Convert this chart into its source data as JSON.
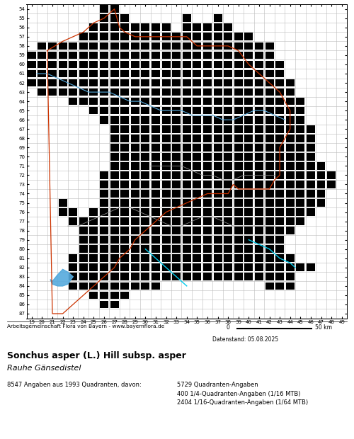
{
  "title_bold": "Sonchus asper (L.) Hill subsp. asper",
  "title_italic": "Rauhe Gänsedistel",
  "stats_line1": "8547 Angaben aus 1993 Quadranten, davon:",
  "stats_col2_line1": "5729 Quadranten-Angaben",
  "stats_col2_line2": "400 1/4-Quadranten-Angaben (1/16 MTB)",
  "stats_col2_line3": "2404 1/16-Quadranten-Angaben (1/64 MTB)",
  "footer_left": "Arbeitsgemeinschaft Flora von Bayern - www.bayernflora.de",
  "date_line": "Datenstand: 05.08.2025",
  "x_min": 19,
  "x_max": 49,
  "y_min": 54,
  "y_max": 87,
  "grid_color": "#bbbbbb",
  "orange_color": "#cc3300",
  "blue_color": "#55aadd",
  "gray_color": "#888888",
  "cyan_color": "#00ccee",
  "black": "#000000",
  "white": "#ffffff",
  "sq_size": 0.82,
  "rows_data": {
    "54": [
      26,
      27
    ],
    "55": [
      26,
      27,
      28,
      34,
      37
    ],
    "56": [
      25,
      26,
      27,
      28,
      29,
      30,
      31,
      32,
      34,
      35,
      36,
      37,
      38
    ],
    "57": [
      24,
      25,
      26,
      27,
      28,
      29,
      30,
      31,
      32,
      33,
      34,
      35,
      36,
      37,
      38,
      39,
      40
    ],
    "58": [
      20,
      21,
      22,
      23,
      24,
      25,
      26,
      27,
      28,
      29,
      30,
      31,
      32,
      33,
      34,
      35,
      36,
      37,
      38,
      39,
      40,
      41,
      42
    ],
    "59": [
      19,
      20,
      21,
      22,
      23,
      24,
      25,
      26,
      27,
      28,
      29,
      30,
      31,
      32,
      33,
      34,
      35,
      36,
      37,
      38,
      39,
      40,
      41,
      42
    ],
    "60": [
      19,
      20,
      21,
      22,
      23,
      24,
      25,
      26,
      27,
      28,
      29,
      30,
      31,
      32,
      33,
      34,
      35,
      36,
      37,
      38,
      39,
      40,
      41,
      42,
      43
    ],
    "61": [
      19,
      20,
      21,
      22,
      23,
      24,
      25,
      26,
      27,
      28,
      29,
      30,
      31,
      32,
      33,
      34,
      35,
      36,
      37,
      38,
      39,
      40,
      41,
      42,
      43
    ],
    "62": [
      19,
      20,
      21,
      22,
      23,
      24,
      25,
      26,
      27,
      28,
      29,
      30,
      31,
      32,
      33,
      34,
      35,
      36,
      37,
      38,
      39,
      40,
      41,
      42,
      43,
      44
    ],
    "63": [
      20,
      21,
      22,
      23,
      24,
      25,
      26,
      27,
      28,
      29,
      30,
      31,
      32,
      33,
      34,
      35,
      36,
      37,
      38,
      39,
      40,
      41,
      42,
      43,
      44
    ],
    "64": [
      23,
      24,
      25,
      26,
      27,
      28,
      29,
      30,
      31,
      32,
      33,
      34,
      35,
      36,
      37,
      38,
      39,
      40,
      41,
      42,
      43,
      44,
      45
    ],
    "65": [
      25,
      26,
      27,
      28,
      29,
      30,
      31,
      32,
      33,
      34,
      35,
      36,
      37,
      38,
      39,
      40,
      41,
      42,
      43,
      44,
      45
    ],
    "66": [
      26,
      27,
      28,
      29,
      30,
      31,
      32,
      33,
      34,
      35,
      36,
      37,
      38,
      39,
      40,
      41,
      42,
      43,
      44,
      45
    ],
    "67": [
      27,
      28,
      29,
      30,
      31,
      32,
      33,
      34,
      35,
      36,
      37,
      38,
      39,
      40,
      41,
      42,
      43,
      44,
      45,
      46
    ],
    "68": [
      27,
      28,
      29,
      30,
      31,
      32,
      33,
      34,
      35,
      36,
      37,
      38,
      39,
      40,
      41,
      42,
      43,
      44,
      45,
      46
    ],
    "69": [
      27,
      28,
      29,
      30,
      31,
      32,
      33,
      34,
      35,
      36,
      37,
      38,
      39,
      40,
      41,
      42,
      43,
      44,
      45,
      46
    ],
    "70": [
      27,
      28,
      29,
      30,
      31,
      32,
      33,
      34,
      35,
      36,
      37,
      38,
      39,
      40,
      41,
      42,
      43,
      44,
      45,
      46
    ],
    "71": [
      27,
      28,
      29,
      30,
      31,
      32,
      33,
      34,
      35,
      36,
      37,
      38,
      39,
      40,
      41,
      42,
      43,
      44,
      45,
      46,
      47
    ],
    "72": [
      26,
      27,
      28,
      29,
      30,
      31,
      32,
      33,
      34,
      35,
      36,
      37,
      38,
      39,
      40,
      41,
      42,
      43,
      44,
      45,
      46,
      47,
      48
    ],
    "73": [
      26,
      27,
      28,
      29,
      30,
      31,
      32,
      33,
      34,
      35,
      36,
      37,
      38,
      39,
      40,
      41,
      42,
      43,
      44,
      45,
      46,
      47,
      48
    ],
    "74": [
      26,
      27,
      28,
      29,
      30,
      31,
      32,
      33,
      34,
      35,
      36,
      37,
      38,
      39,
      40,
      41,
      42,
      43,
      44,
      45,
      46,
      47
    ],
    "75": [
      22,
      26,
      27,
      28,
      29,
      30,
      31,
      32,
      33,
      34,
      35,
      36,
      37,
      38,
      39,
      40,
      41,
      42,
      43,
      44,
      45,
      46,
      47
    ],
    "76": [
      22,
      23,
      25,
      26,
      27,
      28,
      29,
      30,
      31,
      32,
      33,
      34,
      35,
      36,
      37,
      38,
      39,
      40,
      41,
      42,
      43,
      44,
      45,
      46
    ],
    "77": [
      23,
      24,
      25,
      26,
      27,
      28,
      29,
      30,
      31,
      32,
      33,
      34,
      35,
      36,
      37,
      38,
      39,
      40,
      41,
      42,
      43,
      44,
      45
    ],
    "78": [
      24,
      25,
      26,
      27,
      28,
      29,
      30,
      31,
      32,
      33,
      34,
      35,
      36,
      37,
      38,
      39,
      40,
      41,
      42,
      43,
      44
    ],
    "79": [
      24,
      25,
      26,
      27,
      28,
      29,
      30,
      31,
      32,
      33,
      34,
      35,
      36,
      37,
      38,
      39,
      40,
      41,
      42,
      43
    ],
    "80": [
      24,
      25,
      26,
      27,
      28,
      29,
      30,
      31,
      32,
      33,
      34,
      35,
      36,
      37,
      38,
      39,
      40,
      41,
      42,
      43
    ],
    "81": [
      23,
      24,
      25,
      26,
      27,
      28,
      29,
      30,
      31,
      32,
      33,
      34,
      35,
      36,
      37,
      38,
      39,
      40,
      41,
      42,
      43,
      44
    ],
    "82": [
      23,
      24,
      25,
      26,
      27,
      28,
      29,
      30,
      31,
      32,
      33,
      34,
      35,
      36,
      37,
      38,
      39,
      40,
      41,
      42,
      43,
      44,
      45,
      46
    ],
    "83": [
      23,
      24,
      25,
      26,
      27,
      28,
      29,
      30,
      31,
      32,
      33,
      34,
      35,
      36,
      37,
      38,
      39,
      40,
      41,
      42,
      43,
      44
    ],
    "84": [
      23,
      24,
      25,
      26,
      27,
      28,
      29,
      30,
      31,
      42,
      43,
      44
    ],
    "85": [
      25,
      26,
      27,
      28
    ],
    "86": [
      26,
      27
    ],
    "87": []
  },
  "bavaria_outline": {
    "x": [
      20.5,
      22.0,
      23.0,
      24.0,
      25.0,
      26.0,
      26.5,
      27.0,
      27.5,
      28.0,
      29.0,
      30.0,
      31.0,
      32.0,
      33.0,
      34.0,
      34.5,
      35.0,
      36.0,
      37.0,
      38.0,
      39.0,
      40.0,
      41.0,
      42.0,
      43.0,
      43.5,
      44.0,
      44.0,
      44.0,
      43.5,
      43.0,
      43.0,
      43.0,
      43.0,
      42.5,
      42.0,
      41.5,
      41.0,
      40.0,
      39.0,
      38.5,
      38.0,
      37.0,
      36.0,
      35.0,
      34.0,
      33.0,
      32.0,
      31.5,
      31.0,
      30.5,
      30.0,
      29.5,
      29.0,
      28.5,
      28.0,
      27.5,
      27.0,
      26.5,
      26.0,
      25.5,
      25.0,
      24.5,
      24.0,
      23.5,
      23.0,
      22.5,
      22.0,
      21.5,
      21.0,
      20.5
    ],
    "y": [
      58.5,
      57.5,
      57.0,
      56.5,
      55.5,
      55.0,
      54.5,
      54.0,
      56.0,
      56.5,
      57.0,
      57.0,
      57.0,
      57.0,
      57.0,
      57.0,
      57.5,
      58.0,
      58.0,
      58.0,
      58.0,
      58.5,
      60.0,
      61.0,
      62.0,
      63.0,
      64.0,
      65.0,
      66.0,
      67.0,
      68.0,
      69.0,
      70.0,
      71.0,
      72.0,
      72.5,
      73.5,
      73.5,
      73.5,
      73.5,
      73.5,
      73.0,
      74.0,
      74.0,
      74.0,
      74.5,
      75.0,
      75.5,
      76.0,
      76.5,
      77.0,
      77.5,
      78.0,
      78.5,
      79.0,
      80.0,
      80.5,
      81.0,
      82.0,
      82.5,
      83.0,
      83.5,
      84.0,
      84.5,
      85.0,
      85.5,
      86.0,
      86.5,
      87.0,
      87.0,
      87.0,
      58.5
    ]
  },
  "blue_line": {
    "x": [
      19.5,
      20.5,
      21.5,
      22.5,
      23.5,
      24.5,
      25.5,
      26.5,
      27.5,
      28.5,
      29.5,
      30.5,
      31.5,
      32.5,
      33.5,
      34.5,
      35.5,
      36.5,
      37.5,
      38.5,
      39.5,
      40.5,
      41.5,
      42.5,
      43.5
    ],
    "y": [
      61.0,
      61.0,
      61.5,
      62.0,
      62.5,
      63.0,
      63.0,
      63.0,
      63.5,
      64.0,
      64.0,
      64.5,
      65.0,
      65.0,
      65.0,
      65.5,
      65.5,
      65.5,
      66.0,
      66.0,
      65.5,
      65.0,
      65.0,
      65.5,
      66.0
    ]
  },
  "gray_line1": {
    "x": [
      22.5,
      23.5,
      24.5,
      25.5,
      26.5,
      27.5,
      28.5,
      29.5,
      30.5,
      31.5,
      32.5,
      33.5,
      34.5,
      35.5,
      36.5,
      37.5,
      38.5,
      39.5,
      40.5,
      41.5,
      42.5
    ],
    "y": [
      77.5,
      77.5,
      77.0,
      76.5,
      76.0,
      75.5,
      75.5,
      76.0,
      76.5,
      77.0,
      77.5,
      77.5,
      77.0,
      76.5,
      76.5,
      77.0,
      77.5,
      77.5,
      77.5,
      77.5,
      77.5
    ]
  },
  "gray_line2": {
    "x": [
      30.5,
      31.5,
      32.5,
      33.5,
      34.5,
      35.5,
      36.5,
      37.5,
      38.5,
      39.5,
      40.5,
      41.5,
      42.5
    ],
    "y": [
      71.0,
      71.0,
      71.0,
      71.0,
      71.5,
      72.0,
      72.0,
      72.5,
      72.5,
      72.0,
      72.0,
      72.0,
      72.0
    ]
  },
  "lake_x": [
    21.0,
    21.5,
    22.0,
    22.5,
    23.0,
    22.8,
    22.5,
    22.0,
    21.5,
    21.0,
    20.8,
    21.0
  ],
  "lake_y": [
    83.5,
    82.8,
    82.2,
    82.5,
    83.0,
    83.3,
    83.8,
    84.0,
    84.0,
    83.8,
    83.3,
    83.5
  ],
  "cyan_river_x": [
    30.0,
    30.5,
    31.0,
    31.5,
    32.0,
    32.5,
    33.0,
    33.5,
    34.0
  ],
  "cyan_river_y": [
    80.0,
    80.5,
    81.0,
    81.5,
    82.0,
    82.5,
    83.0,
    83.5,
    84.0
  ],
  "inn_x": [
    40.0,
    41.0,
    42.0,
    43.0,
    44.0,
    44.5
  ],
  "inn_y": [
    79.0,
    79.5,
    80.0,
    81.0,
    81.5,
    82.0
  ]
}
